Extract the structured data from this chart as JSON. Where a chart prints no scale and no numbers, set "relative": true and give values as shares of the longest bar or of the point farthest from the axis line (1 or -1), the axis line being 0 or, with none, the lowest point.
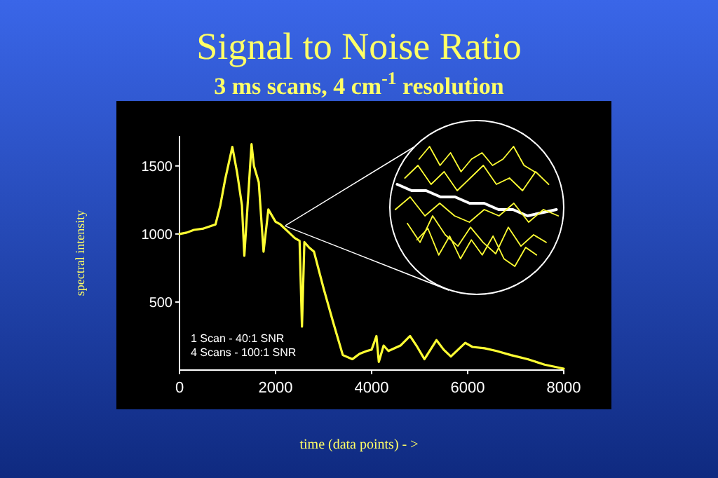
{
  "chart_data": [
    {
      "type": "line",
      "title": "Signal to Noise Ratio",
      "subtitle": "3 ms scans, 4 cm$^{-1}$ resolution",
      "xlabel": "time (data points) - >",
      "ylabel": "spectral intensity",
      "x": [
        0,
        150,
        300,
        500,
        750,
        850,
        950,
        1100,
        1200,
        1300,
        1350,
        1500,
        1550,
        1650,
        1750,
        1850,
        2000,
        2100,
        2250,
        2400,
        2500,
        2550,
        2600,
        2700,
        2800,
        3000,
        3200,
        3400,
        3600,
        3750,
        3900,
        4000,
        4100,
        4150,
        4250,
        4350,
        4600,
        4800,
        4950,
        5100,
        5350,
        5500,
        5650,
        5950,
        6100,
        6350,
        6600,
        6900,
        7250,
        7600,
        8000
      ],
      "series": [
        {
          "color": "#ffff33",
          "values": [
            1000,
            1010,
            1030,
            1040,
            1070,
            1210,
            1400,
            1640,
            1450,
            1210,
            840,
            1660,
            1500,
            1380,
            870,
            1180,
            1090,
            1070,
            1020,
            970,
            950,
            320,
            940,
            900,
            870,
            600,
            350,
            110,
            80,
            120,
            140,
            150,
            250,
            60,
            180,
            140,
            180,
            250,
            170,
            80,
            220,
            150,
            100,
            200,
            170,
            160,
            140,
            110,
            80,
            40,
            10
          ]
        }
      ],
      "xlim": [
        0,
        8000
      ],
      "ylim": [
        0,
        1720
      ],
      "xticks": [
        0,
        2000,
        4000,
        6000,
        8000
      ],
      "yticks": [
        500,
        1000,
        1500
      ],
      "grid": false,
      "marker": "none",
      "line_style": "solid",
      "annotations": [
        "1 Scan  -  40:1 SNR",
        "4 Scans - 100:1 SNR"
      ]
    },
    {
      "type": "line",
      "relative": true,
      "categories": [
        null,
        null,
        null,
        null,
        null,
        null,
        null,
        null,
        null,
        null,
        null,
        null
      ],
      "series": [
        {
          "color": "#ffff33",
          "values": [
            0.5,
            1,
            0.25,
            0.75,
            0,
            0.5,
            0.75,
            0.25,
            0.5,
            1,
            0.25,
            0
          ]
        }
      ]
    },
    {
      "type": "line",
      "relative": true,
      "categories": [
        null,
        null,
        null,
        null,
        null,
        null,
        null,
        null,
        null,
        null,
        null,
        null
      ],
      "series": [
        {
          "color": "#ffff33",
          "values": [
            0.5,
            1,
            0.25,
            0.75,
            0,
            0.5,
            1,
            0.25,
            0.5,
            0,
            0.75,
            0.25
          ]
        }
      ]
    },
    {
      "type": "line",
      "relative": true,
      "categories": [
        null,
        null,
        null,
        null,
        null,
        null,
        null,
        null,
        null,
        null,
        null,
        null
      ],
      "series": [
        {
          "color": "#ffffff",
          "values": [
            1,
            0.8,
            0.8,
            0.6,
            0.6,
            0.4,
            0.4,
            0.2,
            0.2,
            0,
            0.1,
            0.2
          ]
        }
      ]
    },
    {
      "type": "line",
      "relative": true,
      "categories": [
        null,
        null,
        null,
        null,
        null,
        null,
        null,
        null,
        null,
        null,
        null,
        null
      ],
      "series": [
        {
          "color": "#ffff33",
          "values": [
            0.5,
            1,
            0.25,
            0.75,
            0.25,
            0,
            0.5,
            0.25,
            0.75,
            0,
            0.5,
            0.25
          ]
        }
      ]
    },
    {
      "type": "line",
      "relative": true,
      "categories": [
        null,
        null,
        null,
        null,
        null,
        null,
        null,
        null,
        null,
        null,
        null,
        null
      ],
      "series": [
        {
          "color": "#ffff33",
          "values": [
            0.8,
            0.3,
            1,
            0.5,
            0.2,
            0.7,
            0.3,
            0,
            0.7,
            0.2,
            0.5,
            0.3
          ]
        }
      ]
    },
    {
      "type": "line",
      "relative": true,
      "categories": [
        null,
        null,
        null,
        null,
        null,
        null,
        null,
        null,
        null,
        null,
        null,
        null
      ],
      "series": [
        {
          "color": "#ffff33",
          "values": [
            0.7,
            1,
            0.3,
            0.8,
            0.2,
            0.7,
            0.3,
            0.8,
            0.2,
            0,
            0.5,
            0.3
          ]
        }
      ]
    }
  ]
}
